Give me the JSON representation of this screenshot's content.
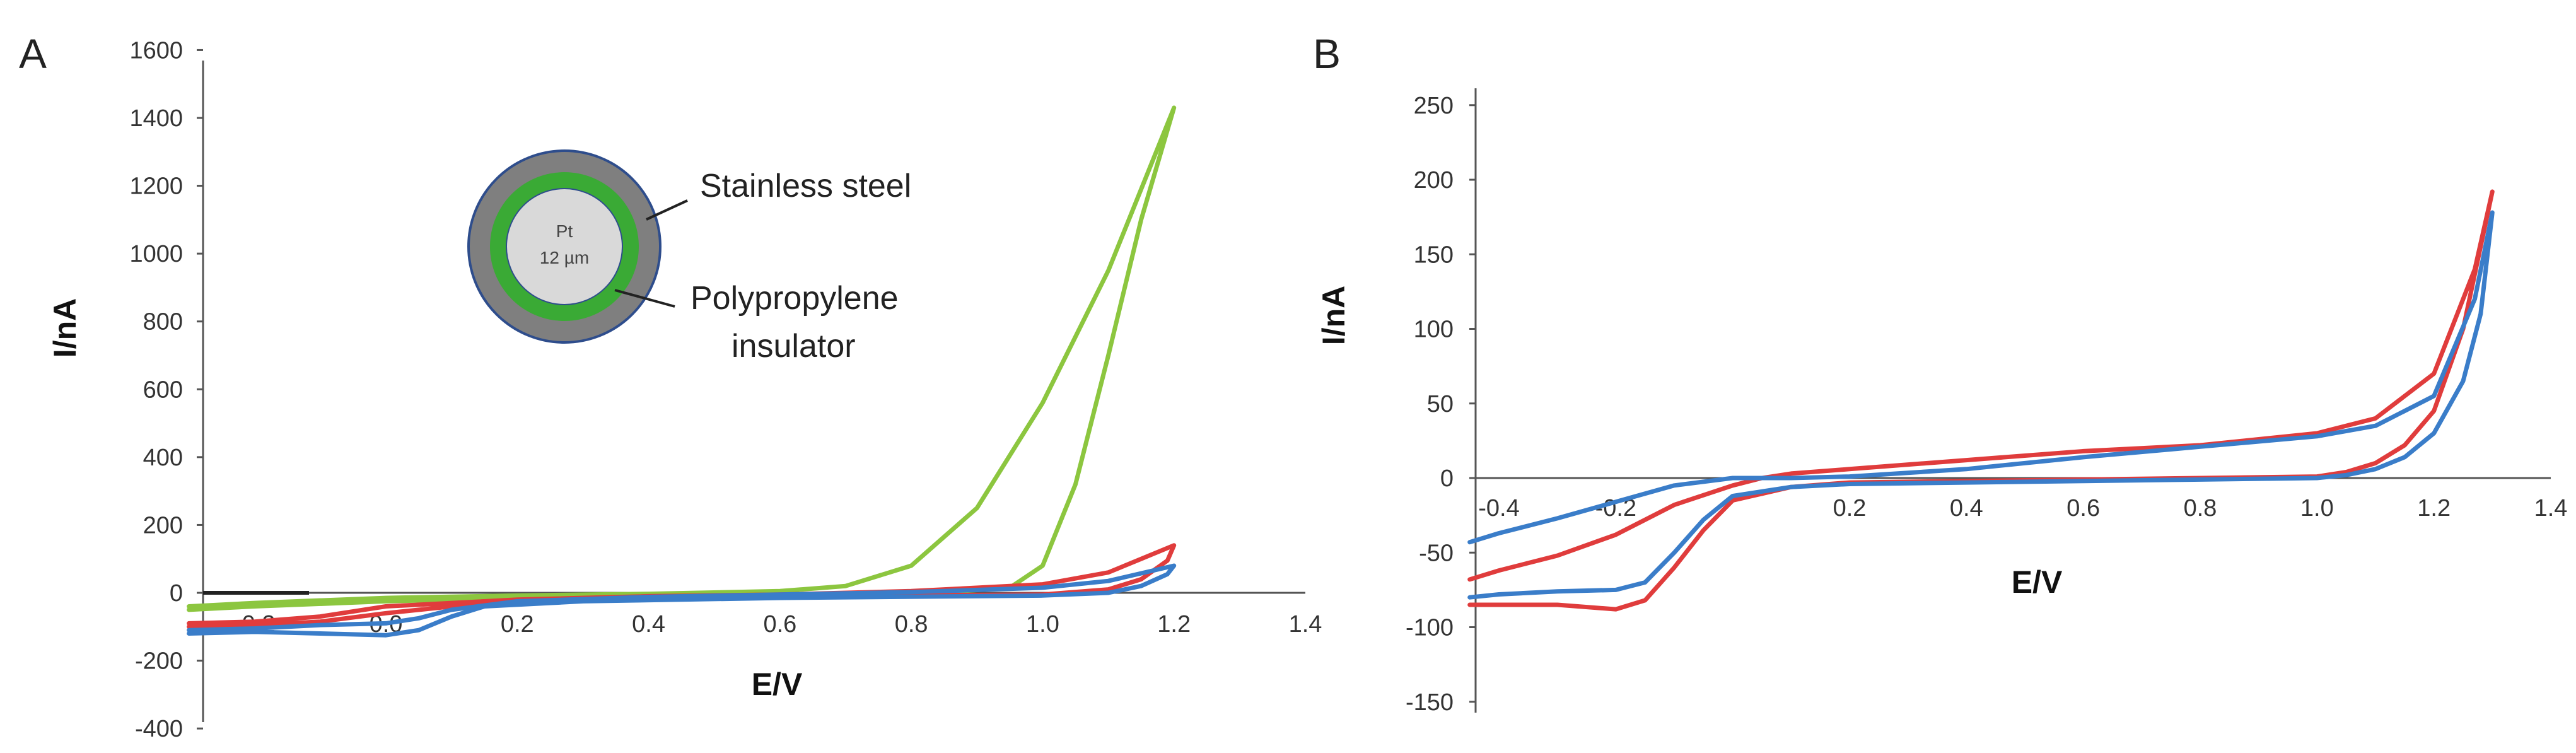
{
  "chart_data": [
    {
      "panel": "A",
      "type": "line",
      "xlabel": "E/V",
      "ylabel": "I/nA",
      "xlim": [
        -0.3,
        1.4
      ],
      "ylim": [
        -400,
        1600
      ],
      "x_ticks": [
        "-0.2",
        "0.0",
        "0.2",
        "0.4",
        "0.6",
        "0.8",
        "1.0",
        "1.2",
        "1.4"
      ],
      "y_ticks": [
        "1600",
        "1400",
        "1200",
        "1000",
        "800",
        "600",
        "400",
        "200",
        "0",
        "-200",
        "-400"
      ],
      "inset": {
        "core_label": "Pt",
        "core_sublabel": "12 µm",
        "label_outer": "Stainless steel",
        "label_middle_line1": "Polypropylene",
        "label_middle_line2": "insulator"
      },
      "series": [
        {
          "name": "green",
          "color": "#8cc63f",
          "points": [
            [
              -0.3,
              -40
            ],
            [
              -0.2,
              -30
            ],
            [
              0.0,
              -15
            ],
            [
              0.2,
              -8
            ],
            [
              0.4,
              -3
            ],
            [
              0.6,
              5
            ],
            [
              0.7,
              20
            ],
            [
              0.8,
              80
            ],
            [
              0.9,
              250
            ],
            [
              1.0,
              560
            ],
            [
              1.1,
              950
            ],
            [
              1.2,
              1430
            ],
            [
              1.15,
              1100
            ],
            [
              1.1,
              700
            ],
            [
              1.05,
              320
            ],
            [
              1.0,
              80
            ],
            [
              0.95,
              15
            ],
            [
              0.8,
              -5
            ],
            [
              0.5,
              -10
            ],
            [
              0.2,
              -15
            ],
            [
              0.0,
              -25
            ],
            [
              -0.2,
              -40
            ],
            [
              -0.3,
              -50
            ]
          ]
        },
        {
          "name": "red",
          "color": "#e03c3c",
          "points": [
            [
              -0.3,
              -90
            ],
            [
              -0.2,
              -85
            ],
            [
              -0.1,
              -70
            ],
            [
              0.0,
              -40
            ],
            [
              0.2,
              -20
            ],
            [
              0.4,
              -10
            ],
            [
              0.6,
              -5
            ],
            [
              0.8,
              5
            ],
            [
              1.0,
              25
            ],
            [
              1.1,
              60
            ],
            [
              1.2,
              140
            ],
            [
              1.19,
              95
            ],
            [
              1.15,
              40
            ],
            [
              1.1,
              10
            ],
            [
              1.0,
              -5
            ],
            [
              0.6,
              -10
            ],
            [
              0.2,
              -20
            ],
            [
              0.0,
              -60
            ],
            [
              -0.1,
              -85
            ],
            [
              -0.2,
              -95
            ],
            [
              -0.3,
              -100
            ]
          ]
        },
        {
          "name": "blue",
          "color": "#3a7dc9",
          "points": [
            [
              -0.3,
              -110
            ],
            [
              -0.2,
              -105
            ],
            [
              -0.1,
              -95
            ],
            [
              0.0,
              -90
            ],
            [
              0.05,
              -75
            ],
            [
              0.1,
              -50
            ],
            [
              0.2,
              -25
            ],
            [
              0.4,
              -12
            ],
            [
              0.6,
              -5
            ],
            [
              0.8,
              2
            ],
            [
              1.0,
              15
            ],
            [
              1.1,
              35
            ],
            [
              1.2,
              80
            ],
            [
              1.19,
              55
            ],
            [
              1.15,
              20
            ],
            [
              1.1,
              0
            ],
            [
              1.0,
              -8
            ],
            [
              0.6,
              -15
            ],
            [
              0.3,
              -25
            ],
            [
              0.15,
              -40
            ],
            [
              0.1,
              -70
            ],
            [
              0.05,
              -110
            ],
            [
              0.0,
              -125
            ],
            [
              -0.1,
              -120
            ],
            [
              -0.2,
              -115
            ],
            [
              -0.3,
              -120
            ]
          ]
        }
      ]
    },
    {
      "panel": "B",
      "type": "line",
      "xlabel": "E/V",
      "ylabel": "I/nA",
      "xlim": [
        -0.45,
        1.4
      ],
      "ylim": [
        -150,
        250
      ],
      "x_ticks": [
        "-0.4",
        "-0.2",
        "0.2",
        "0.4",
        "0.6",
        "0.8",
        "1.0",
        "1.2",
        "1.4"
      ],
      "y_ticks": [
        "250",
        "200",
        "150",
        "100",
        "50",
        "0",
        "-50",
        "-100",
        "-150"
      ],
      "series": [
        {
          "name": "red",
          "color": "#e03c3c",
          "points": [
            [
              -0.45,
              -85
            ],
            [
              -0.4,
              -85
            ],
            [
              -0.3,
              -85
            ],
            [
              -0.2,
              -88
            ],
            [
              -0.15,
              -82
            ],
            [
              -0.1,
              -60
            ],
            [
              -0.05,
              -35
            ],
            [
              0.0,
              -15
            ],
            [
              0.1,
              -6
            ],
            [
              0.2,
              -3
            ],
            [
              0.4,
              -2
            ],
            [
              0.6,
              -1
            ],
            [
              0.8,
              0
            ],
            [
              1.0,
              1
            ],
            [
              1.05,
              4
            ],
            [
              1.1,
              10
            ],
            [
              1.15,
              22
            ],
            [
              1.2,
              45
            ],
            [
              1.25,
              100
            ],
            [
              1.3,
              192
            ],
            [
              1.27,
              140
            ],
            [
              1.2,
              70
            ],
            [
              1.1,
              40
            ],
            [
              1.0,
              30
            ],
            [
              0.8,
              22
            ],
            [
              0.6,
              18
            ],
            [
              0.4,
              12
            ],
            [
              0.2,
              6
            ],
            [
              0.1,
              3
            ],
            [
              0.05,
              0
            ],
            [
              0.0,
              -5
            ],
            [
              -0.1,
              -18
            ],
            [
              -0.2,
              -38
            ],
            [
              -0.3,
              -52
            ],
            [
              -0.4,
              -62
            ],
            [
              -0.45,
              -68
            ]
          ]
        },
        {
          "name": "blue",
          "color": "#3a7dc9",
          "points": [
            [
              -0.45,
              -80
            ],
            [
              -0.4,
              -78
            ],
            [
              -0.3,
              -76
            ],
            [
              -0.2,
              -75
            ],
            [
              -0.15,
              -70
            ],
            [
              -0.1,
              -50
            ],
            [
              -0.05,
              -28
            ],
            [
              0.0,
              -12
            ],
            [
              0.1,
              -6
            ],
            [
              0.2,
              -4
            ],
            [
              0.4,
              -3
            ],
            [
              0.6,
              -2
            ],
            [
              0.8,
              -1
            ],
            [
              1.0,
              0
            ],
            [
              1.05,
              2
            ],
            [
              1.1,
              6
            ],
            [
              1.15,
              14
            ],
            [
              1.2,
              30
            ],
            [
              1.25,
              65
            ],
            [
              1.28,
              110
            ],
            [
              1.3,
              178
            ],
            [
              1.27,
              120
            ],
            [
              1.2,
              55
            ],
            [
              1.1,
              35
            ],
            [
              1.0,
              28
            ],
            [
              0.8,
              21
            ],
            [
              0.6,
              14
            ],
            [
              0.4,
              6
            ],
            [
              0.2,
              1
            ],
            [
              0.1,
              0
            ],
            [
              0.0,
              0
            ],
            [
              -0.1,
              -5
            ],
            [
              -0.2,
              -16
            ],
            [
              -0.3,
              -27
            ],
            [
              -0.4,
              -37
            ],
            [
              -0.45,
              -43
            ]
          ]
        }
      ]
    }
  ]
}
